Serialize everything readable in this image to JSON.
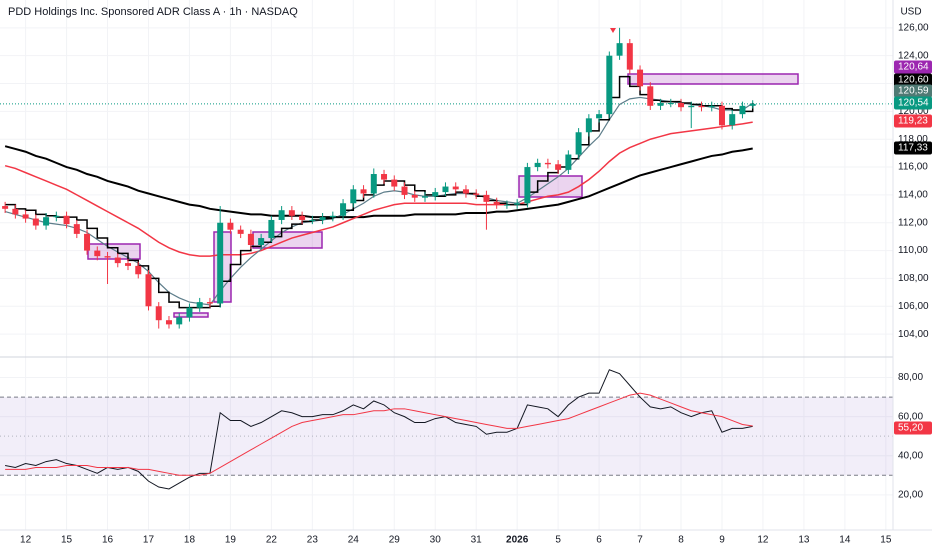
{
  "header": {
    "title": "PDD Holdings Inc. Sponsored ADR Class A · 1h · NASDAQ",
    "currency": "USD"
  },
  "chart_data": [
    {
      "type": "candlestick",
      "up_color": "#089981",
      "down_color": "#f23645",
      "grid": true,
      "x": [
        0,
        1,
        2,
        3,
        4,
        5,
        6,
        7,
        8,
        9,
        10,
        11,
        12,
        13,
        14,
        15,
        16,
        17,
        18,
        19,
        20,
        21,
        22,
        23,
        24,
        25,
        26,
        27,
        28,
        29,
        30,
        31,
        32,
        33,
        34,
        35,
        36,
        37,
        38,
        39,
        40,
        41,
        42,
        43,
        44,
        45,
        46,
        47,
        48,
        49,
        50,
        51,
        52,
        53,
        54,
        55,
        56,
        57,
        58,
        59,
        60,
        61,
        62,
        63,
        64,
        65,
        66,
        67,
        68,
        69,
        70,
        71,
        72,
        73
      ],
      "open": [
        113.2,
        113.0,
        112.6,
        112.3,
        111.8,
        112.4,
        112.5,
        111.9,
        111.2,
        110.0,
        109.6,
        109.5,
        109.1,
        108.9,
        108.3,
        106.0,
        105.0,
        104.7,
        105.2,
        105.9,
        106.3,
        106.2,
        112.0,
        111.5,
        111.2,
        110.4,
        110.9,
        112.2,
        112.9,
        112.5,
        112.2,
        112.2,
        112.4,
        112.5,
        113.4,
        114.4,
        114.1,
        115.5,
        115.1,
        114.6,
        114.0,
        113.8,
        113.9,
        114.2,
        114.6,
        114.4,
        114.1,
        114.0,
        113.5,
        113.3,
        113.3,
        113.4,
        116.0,
        116.3,
        116.2,
        115.8,
        116.9,
        118.5,
        119.5,
        119.8,
        124.0,
        124.9,
        123.0,
        121.8,
        120.4,
        120.6,
        120.6,
        120.3,
        120.4,
        120.3,
        120.4,
        119.0,
        119.8,
        120.4
      ],
      "high": [
        113.5,
        113.3,
        112.9,
        112.6,
        112.7,
        112.8,
        112.8,
        112.2,
        111.5,
        110.3,
        109.9,
        109.8,
        109.4,
        109.2,
        108.6,
        106.3,
        105.3,
        105.5,
        106.2,
        106.6,
        106.6,
        113.2,
        112.3,
        111.8,
        111.5,
        111.2,
        112.5,
        113.2,
        113.2,
        112.8,
        112.5,
        112.7,
        112.8,
        113.7,
        114.7,
        114.7,
        115.9,
        115.8,
        115.4,
        114.9,
        114.3,
        114.2,
        114.5,
        114.9,
        114.9,
        114.7,
        114.4,
        114.3,
        113.8,
        113.6,
        113.7,
        116.3,
        116.6,
        116.6,
        116.5,
        117.2,
        118.8,
        119.8,
        120.1,
        124.3,
        126.0,
        125.2,
        123.3,
        122.1,
        120.9,
        120.9,
        120.9,
        120.7,
        120.7,
        120.7,
        120.7,
        120.1,
        120.7,
        120.8
      ],
      "low": [
        112.7,
        112.3,
        112.0,
        111.5,
        111.5,
        112.1,
        111.6,
        110.9,
        109.7,
        109.3,
        107.6,
        108.8,
        108.6,
        108.0,
        105.7,
        104.4,
        104.4,
        104.4,
        104.9,
        105.6,
        105.9,
        105.9,
        111.2,
        110.9,
        110.1,
        110.1,
        110.6,
        111.9,
        112.2,
        111.9,
        111.9,
        111.9,
        112.1,
        112.2,
        113.1,
        113.8,
        113.8,
        114.8,
        114.3,
        113.7,
        113.5,
        113.5,
        113.6,
        113.9,
        114.1,
        113.8,
        113.7,
        111.5,
        113.0,
        113.0,
        113.0,
        113.1,
        115.7,
        115.9,
        115.5,
        115.5,
        116.6,
        118.2,
        119.2,
        119.5,
        123.7,
        122.7,
        121.5,
        120.1,
        120.1,
        120.3,
        120.0,
        118.8,
        120.0,
        120.0,
        118.7,
        118.7,
        119.5,
        120.2
      ],
      "close": [
        113.0,
        112.6,
        112.3,
        111.8,
        112.4,
        112.5,
        111.9,
        111.2,
        110.0,
        109.6,
        109.5,
        109.1,
        108.9,
        108.3,
        106.0,
        105.0,
        104.7,
        105.2,
        105.9,
        106.3,
        106.2,
        112.0,
        111.5,
        111.2,
        110.4,
        110.9,
        112.2,
        112.9,
        112.5,
        112.2,
        112.2,
        112.4,
        112.5,
        113.4,
        114.4,
        114.1,
        115.5,
        115.1,
        114.6,
        114.0,
        113.8,
        113.9,
        114.2,
        114.6,
        114.4,
        114.1,
        114.0,
        113.5,
        113.3,
        113.3,
        113.4,
        116.0,
        116.3,
        116.2,
        115.8,
        116.9,
        118.5,
        119.5,
        119.8,
        124.0,
        124.9,
        123.0,
        121.8,
        120.4,
        120.6,
        120.6,
        120.3,
        120.4,
        120.3,
        120.4,
        119.0,
        119.8,
        120.4,
        120.54
      ],
      "series": [
        {
          "color": "#000000",
          "width": 2,
          "values": [
            117.5,
            117.3,
            117.1,
            116.8,
            116.6,
            116.3,
            116.0,
            115.8,
            115.5,
            115.3,
            115.0,
            114.8,
            114.6,
            114.3,
            114.1,
            113.9,
            113.7,
            113.5,
            113.3,
            113.2,
            113.0,
            112.9,
            112.8,
            112.7,
            112.6,
            112.6,
            112.5,
            112.5,
            112.5,
            112.5,
            112.4,
            112.4,
            112.4,
            112.4,
            112.4,
            112.4,
            112.5,
            112.5,
            112.5,
            112.5,
            112.6,
            112.6,
            112.6,
            112.6,
            112.6,
            112.7,
            112.7,
            112.7,
            112.8,
            112.8,
            112.9,
            113.0,
            113.1,
            113.2,
            113.3,
            113.5,
            113.7,
            113.9,
            114.2,
            114.5,
            114.8,
            115.1,
            115.4,
            115.6,
            115.8,
            116.0,
            116.2,
            116.4,
            116.6,
            116.8,
            116.9,
            117.1,
            117.2,
            117.33
          ]
        },
        {
          "color": "#f23645",
          "width": 1.5,
          "values": [
            116.1,
            115.9,
            115.6,
            115.3,
            115.0,
            114.7,
            114.4,
            114.0,
            113.6,
            113.2,
            112.8,
            112.4,
            112.0,
            111.6,
            111.1,
            110.6,
            110.2,
            109.9,
            109.7,
            109.6,
            109.6,
            109.7,
            109.7,
            109.7,
            109.8,
            110.0,
            110.3,
            110.6,
            110.9,
            111.1,
            111.3,
            111.5,
            111.7,
            112.0,
            112.3,
            112.6,
            112.9,
            113.1,
            113.3,
            113.4,
            113.4,
            113.4,
            113.4,
            113.4,
            113.4,
            113.4,
            113.3,
            113.3,
            113.3,
            113.3,
            113.3,
            113.5,
            113.7,
            113.9,
            114.0,
            114.2,
            114.6,
            115.1,
            115.7,
            116.4,
            117.0,
            117.4,
            117.7,
            118.0,
            118.2,
            118.4,
            118.5,
            118.6,
            118.7,
            118.8,
            118.9,
            119.0,
            119.1,
            119.23
          ]
        },
        {
          "color": "#5d7d8a",
          "width": 1.2,
          "values": [
            112.8,
            112.6,
            112.4,
            112.2,
            112.0,
            111.9,
            111.8,
            111.6,
            111.3,
            110.8,
            110.3,
            109.9,
            109.5,
            109.1,
            108.5,
            107.7,
            107.0,
            106.6,
            106.3,
            106.2,
            106.1,
            107.1,
            108.0,
            108.8,
            109.5,
            110.1,
            110.7,
            111.3,
            111.7,
            112.0,
            112.1,
            112.2,
            112.3,
            112.6,
            113.0,
            113.4,
            113.9,
            114.2,
            114.3,
            114.2,
            114.0,
            113.9,
            113.9,
            114.0,
            114.1,
            114.1,
            114.0,
            113.8,
            113.6,
            113.5,
            113.4,
            113.8,
            114.3,
            114.8,
            115.3,
            115.9,
            116.7,
            117.5,
            118.2,
            119.4,
            120.5,
            120.9,
            121.0,
            120.9,
            120.8,
            120.7,
            120.6,
            120.5,
            120.4,
            120.3,
            120.1,
            120.1,
            120.1,
            120.59
          ]
        },
        {
          "color": "#000000",
          "width": 1.5,
          "step": true,
          "values": [
            113.3,
            113.0,
            112.9,
            112.6,
            112.5,
            112.4,
            112.4,
            112.2,
            111.6,
            110.9,
            110.2,
            109.8,
            109.3,
            108.9,
            108.0,
            107.0,
            106.3,
            105.9,
            105.9,
            105.9,
            106.0,
            107.8,
            109.0,
            110.0,
            110.3,
            110.6,
            111.0,
            111.6,
            111.9,
            112.1,
            112.2,
            112.3,
            112.4,
            112.9,
            113.6,
            114.0,
            114.7,
            115.0,
            115.0,
            114.7,
            114.3,
            114.0,
            113.9,
            114.0,
            114.2,
            114.1,
            113.9,
            113.6,
            113.4,
            113.3,
            113.3,
            114.2,
            115.0,
            115.6,
            116.0,
            116.6,
            117.6,
            118.6,
            119.4,
            121.0,
            122.5,
            121.8,
            121.2,
            120.8,
            120.7,
            120.7,
            120.6,
            120.5,
            120.4,
            120.4,
            120.2,
            120.1,
            120.0,
            120.6
          ]
        }
      ],
      "xlim": [
        -0.5,
        86.7
      ],
      "ylim": [
        102.5,
        128
      ],
      "yticks": [
        {
          "value": 126,
          "label": "126,00"
        },
        {
          "value": 124,
          "label": "124,00"
        },
        {
          "value": 122,
          "label": "122,00"
        },
        {
          "value": 120,
          "label": "120,00"
        },
        {
          "value": 118,
          "label": "118,00"
        },
        {
          "value": 116,
          "label": "116,00"
        },
        {
          "value": 114,
          "label": "114,00"
        },
        {
          "value": 112,
          "label": "112,00"
        },
        {
          "value": 110,
          "label": "110,00"
        },
        {
          "value": 108,
          "label": "108,00"
        },
        {
          "value": 106,
          "label": "106,00"
        },
        {
          "value": 104,
          "label": "104,00"
        }
      ],
      "price_labels": [
        {
          "value": 120.64,
          "label": "120,64",
          "color": "#9c27b0"
        },
        {
          "value": 120.6,
          "label": "120,60",
          "color": "#000000"
        },
        {
          "value": 120.59,
          "label": "120,59",
          "color": "#4f7a74"
        },
        {
          "value": 120.54,
          "label": "120,54",
          "color": "#089981"
        },
        {
          "value": 119.23,
          "label": "119,23",
          "color": "#f23645"
        },
        {
          "value": 117.33,
          "label": "117,33",
          "color": "#000000"
        }
      ]
    },
    {
      "type": "line",
      "grid": true,
      "x": [
        0,
        1,
        2,
        3,
        4,
        5,
        6,
        7,
        8,
        9,
        10,
        11,
        12,
        13,
        14,
        15,
        16,
        17,
        18,
        19,
        20,
        21,
        22,
        23,
        24,
        25,
        26,
        27,
        28,
        29,
        30,
        31,
        32,
        33,
        34,
        35,
        36,
        37,
        38,
        39,
        40,
        41,
        42,
        43,
        44,
        45,
        46,
        47,
        48,
        49,
        50,
        51,
        52,
        53,
        54,
        55,
        56,
        57,
        58,
        59,
        60,
        61,
        62,
        63,
        64,
        65,
        66,
        67,
        68,
        69,
        70,
        71,
        72,
        73
      ],
      "series": [
        {
          "color": "#131722",
          "width": 1,
          "values": [
            35,
            34,
            36,
            35,
            37,
            38,
            36,
            35,
            33,
            31,
            34,
            33,
            34,
            32,
            27,
            24,
            23,
            26,
            29,
            31,
            31,
            62,
            58,
            58,
            55,
            57,
            60,
            63,
            62,
            60,
            60,
            61,
            61,
            63,
            66,
            64,
            68,
            66,
            62,
            60,
            57,
            57,
            59,
            60,
            57,
            56,
            55,
            51,
            52,
            52,
            54,
            66,
            65,
            64,
            60,
            66,
            70,
            72,
            72,
            84,
            82,
            76,
            70,
            65,
            64,
            65,
            62,
            60,
            62,
            63,
            52,
            54,
            54,
            55
          ]
        },
        {
          "color": "#f23645",
          "width": 1,
          "values": [
            33,
            33,
            33,
            34,
            34,
            34,
            35,
            35,
            35,
            34,
            34,
            34,
            34,
            33,
            33,
            32,
            31,
            30,
            30,
            30,
            31,
            34,
            37,
            40,
            43,
            46,
            49,
            52,
            55,
            57,
            58,
            59,
            60,
            61,
            61,
            62,
            63,
            63,
            64,
            64,
            63,
            62,
            61,
            60,
            59,
            58,
            57,
            56,
            55,
            54,
            54,
            55,
            56,
            57,
            58,
            59,
            61,
            63,
            65,
            67,
            69,
            71,
            72,
            71,
            69,
            67,
            65,
            63,
            62,
            61,
            60,
            58,
            56,
            55.2
          ]
        }
      ],
      "band": [
        30,
        70
      ],
      "midline": 50,
      "band_color": "#7e57c2",
      "xlim": [
        -0.5,
        86.7
      ],
      "ylim": [
        2,
        90
      ],
      "yticks": [
        {
          "value": 80,
          "label": "80,00"
        },
        {
          "value": 60,
          "label": "60,00"
        },
        {
          "value": 40,
          "label": "40,00"
        },
        {
          "value": 20,
          "label": "20,00"
        }
      ],
      "price_labels": [
        {
          "value": 55.2,
          "label": "55,20",
          "color": "#f23645"
        }
      ],
      "xticks": [
        {
          "value": 2,
          "label": "12"
        },
        {
          "value": 6,
          "label": "15"
        },
        {
          "value": 10,
          "label": "16"
        },
        {
          "value": 14,
          "label": "17"
        },
        {
          "value": 18,
          "label": "18"
        },
        {
          "value": 22,
          "label": "19"
        },
        {
          "value": 26,
          "label": "22"
        },
        {
          "value": 30,
          "label": "23"
        },
        {
          "value": 34,
          "label": "24"
        },
        {
          "value": 38,
          "label": "29"
        },
        {
          "value": 42,
          "label": "30"
        },
        {
          "value": 46,
          "label": "31"
        },
        {
          "value": 50,
          "label": "2026"
        },
        {
          "value": 54,
          "label": "5"
        },
        {
          "value": 58,
          "label": "6"
        },
        {
          "value": 62,
          "label": "7"
        },
        {
          "value": 66,
          "label": "8"
        },
        {
          "value": 70,
          "label": "9"
        },
        {
          "value": 74,
          "label": "12"
        },
        {
          "value": 78,
          "label": "13"
        },
        {
          "value": 82,
          "label": "14"
        },
        {
          "value": 86,
          "label": "15"
        }
      ]
    }
  ]
}
